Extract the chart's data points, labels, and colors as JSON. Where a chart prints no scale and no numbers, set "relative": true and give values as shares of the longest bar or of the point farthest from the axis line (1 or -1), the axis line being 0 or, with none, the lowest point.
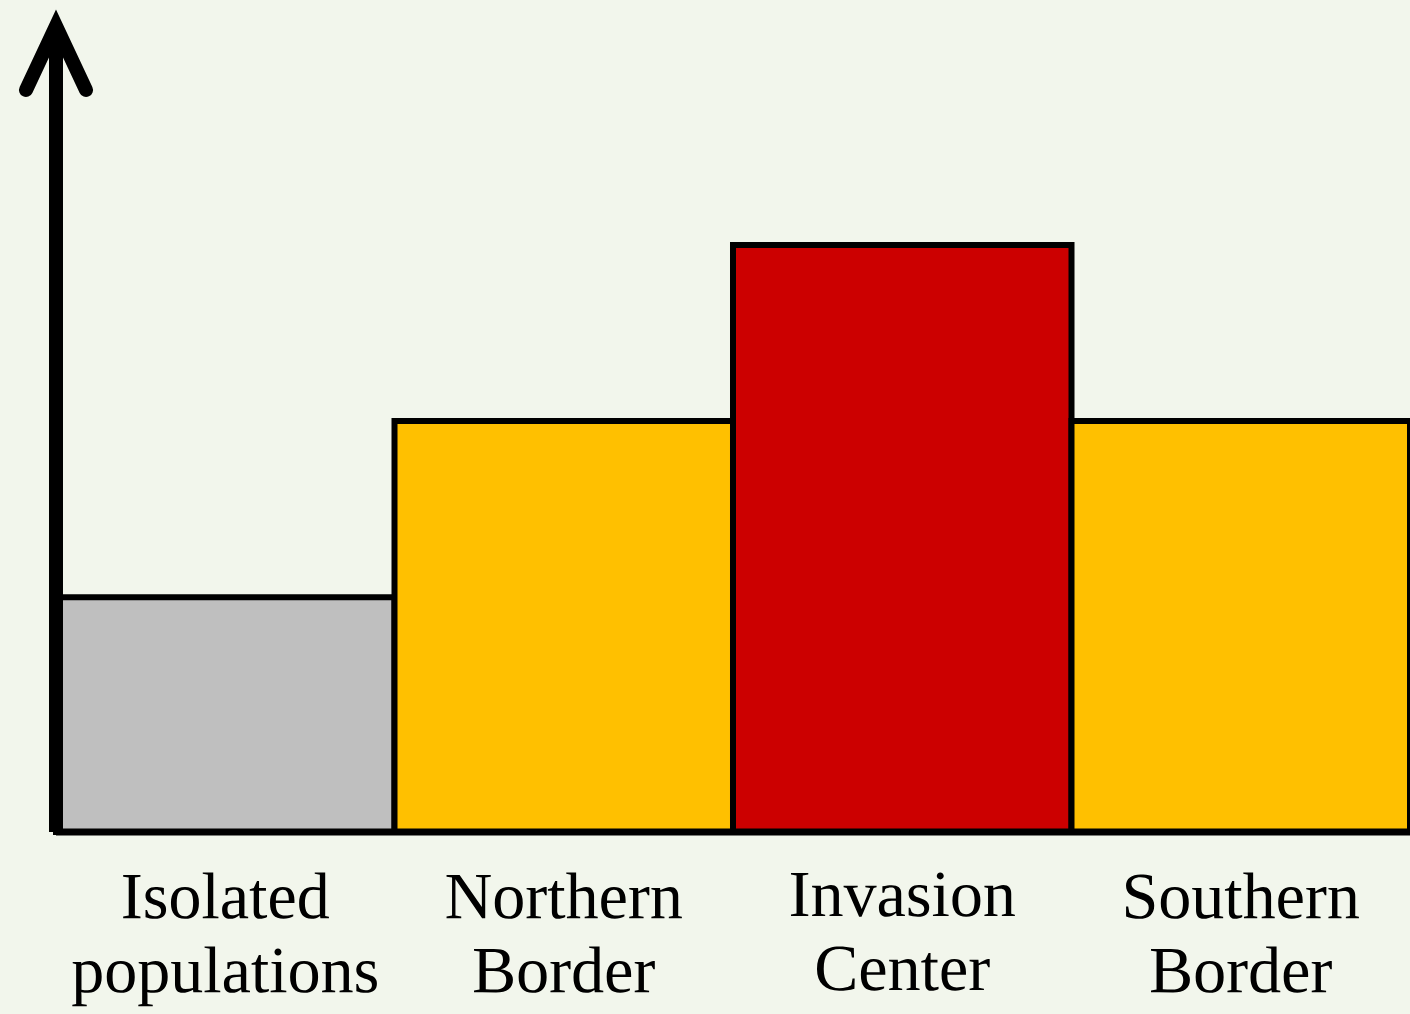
{
  "chart_data": {
    "type": "bar",
    "relative": true,
    "categories": [
      "Isolated populations",
      "Northern Border",
      "Invasion Center",
      "Southern Border"
    ],
    "values": [
      0.4,
      0.7,
      1,
      0.7
    ],
    "colors": [
      "#bfbfbf",
      "#ffc000",
      "#cc0000",
      "#ffc000"
    ]
  }
}
